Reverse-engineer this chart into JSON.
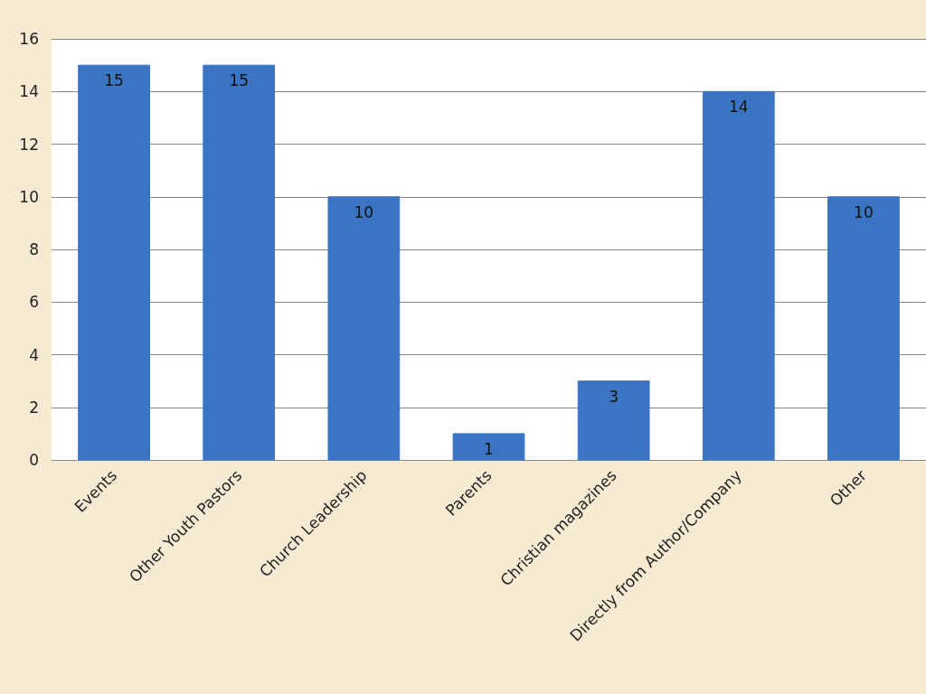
{
  "chart_data": {
    "type": "bar",
    "categories": [
      "Events",
      "Other Youth Pastors",
      "Church Leadership",
      "Parents",
      "Christian magazines",
      "Directly from Author/Company",
      "Other"
    ],
    "values": [
      15,
      15,
      10,
      1,
      3,
      14,
      10
    ],
    "color": "#3a74c2",
    "ylim": [
      0,
      16
    ],
    "yticks": [
      0,
      2,
      4,
      6,
      8,
      10,
      12,
      14,
      16
    ],
    "grid": "y",
    "data_labels": true
  }
}
